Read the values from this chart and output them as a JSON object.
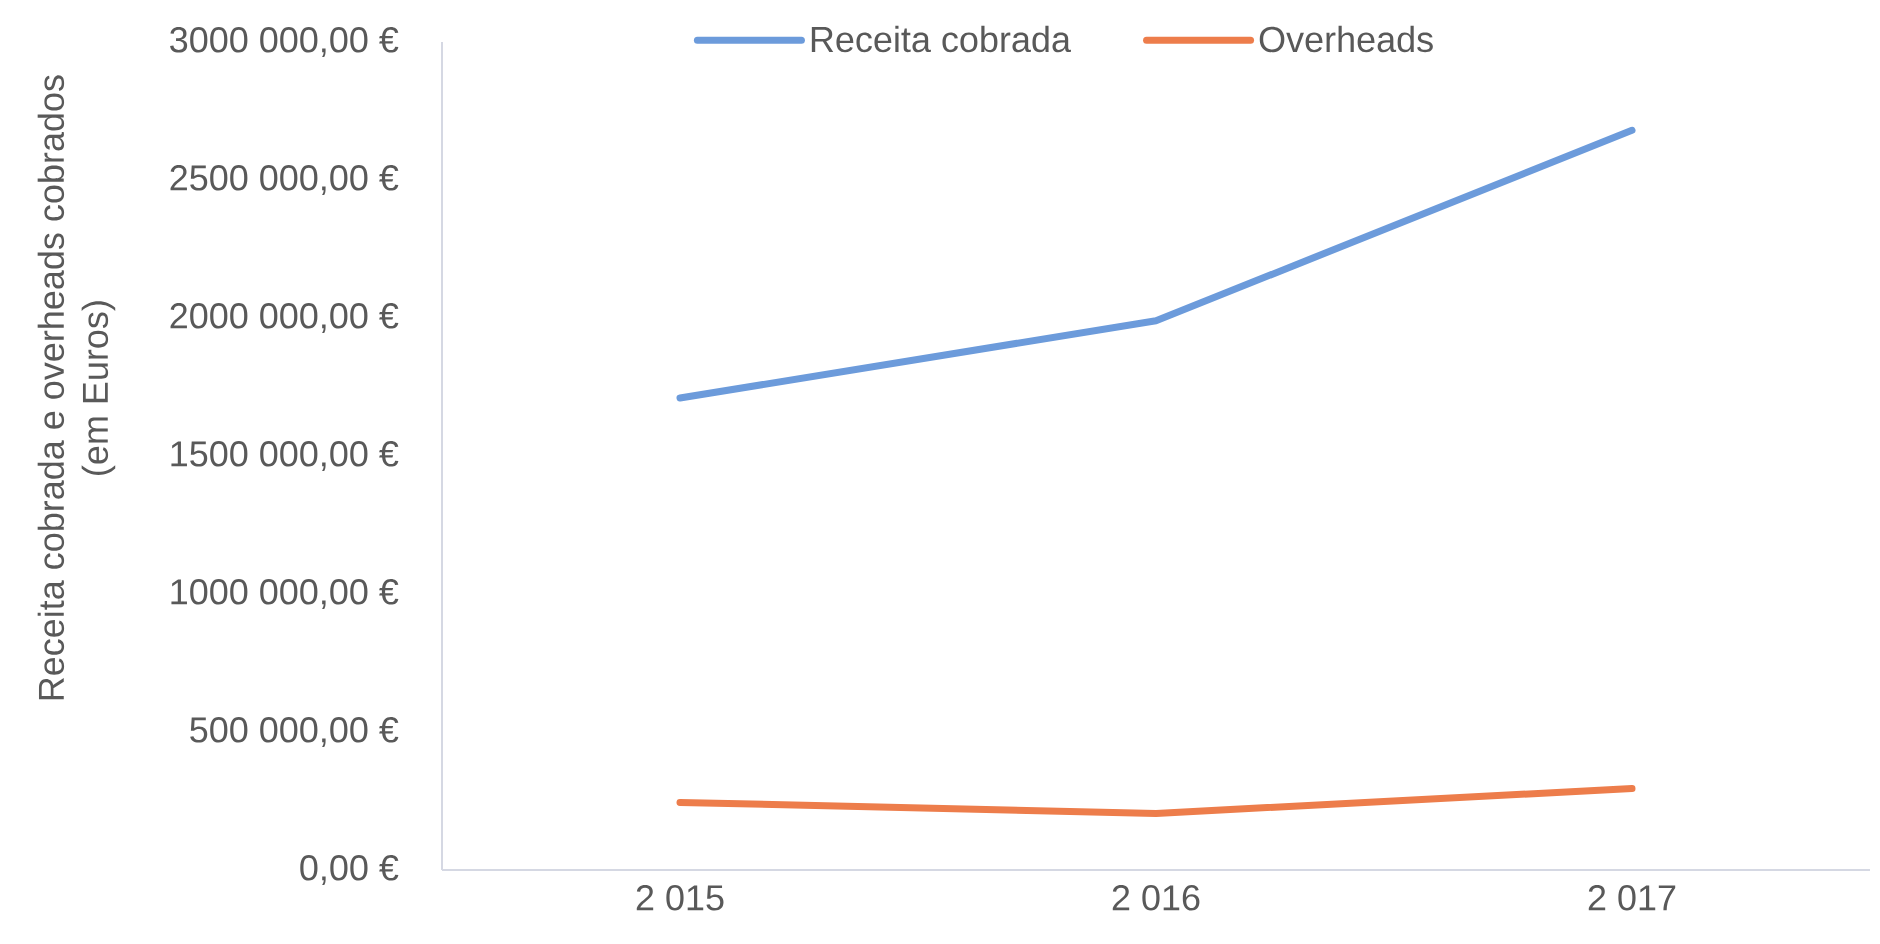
{
  "chart_data": {
    "type": "line",
    "ylabel": "Receita cobrada e overheads cobrados (em Euros)",
    "categories": [
      "2 015",
      "2 016",
      "2 017"
    ],
    "series": [
      {
        "name": "Receita cobrada",
        "color": "#6c9bdb",
        "values": [
          1710000,
          1990000,
          2680000
        ]
      },
      {
        "name": "Overheads",
        "color": "#ed7d4b",
        "values": [
          245000,
          205000,
          295000
        ]
      }
    ],
    "ylim": [
      0,
      3000000
    ],
    "yticks": [
      {
        "value": 0,
        "label": "0,00 €"
      },
      {
        "value": 500000,
        "label": "500 000,00 €"
      },
      {
        "value": 1000000,
        "label": "1000 000,00 €"
      },
      {
        "value": 1500000,
        "label": "1500 000,00 €"
      },
      {
        "value": 2000000,
        "label": "2000 000,00 €"
      },
      {
        "value": 2500000,
        "label": "2500 000,00 €"
      },
      {
        "value": 3000000,
        "label": "3000 000,00 €"
      }
    ],
    "legend": "top",
    "grid": false,
    "marker": "none",
    "line_style": "solid"
  }
}
